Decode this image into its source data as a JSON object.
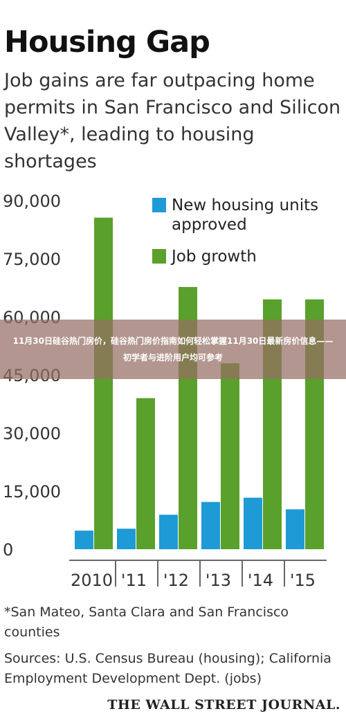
{
  "header": {
    "title": "Housing Gap",
    "subtitle": "Job gains are far outpacing home permits in San Francisco and Silicon Valley*, leading to housing shortages"
  },
  "overlay": {
    "banner_text": "11月30日硅谷热门房价，硅谷热门房价指南如何轻松掌握11月30日最新房价信息——初学者与进阶用户均可参考"
  },
  "chart_data": {
    "type": "bar",
    "categories": [
      "2010",
      "'11",
      "'12",
      "'13",
      "'14",
      "'15"
    ],
    "series": [
      {
        "name": "New housing units approved",
        "values": [
          4800,
          5300,
          8900,
          12200,
          13300,
          10300
        ],
        "color": "#1e9ad6"
      },
      {
        "name": "Job growth",
        "values": [
          85600,
          39000,
          67700,
          48000,
          64500,
          64500
        ],
        "color": "#5aa02c"
      }
    ],
    "ylim": [
      0,
      90000
    ],
    "yticks": [
      0,
      15000,
      30000,
      45000,
      60000,
      75000,
      90000
    ],
    "ytick_labels": [
      "0",
      "15,000",
      "30,000",
      "45,000",
      "60,000",
      "75,000",
      "90,000"
    ],
    "legend_position": "top-right",
    "legend": [
      {
        "lines": [
          "New housing units",
          "approved"
        ],
        "color": "#1e9ad6"
      },
      {
        "lines": [
          "Job growth"
        ],
        "color": "#5aa02c"
      }
    ],
    "grid": false
  },
  "footer": {
    "footnote": "*San Mateo, Santa Clara and San Francisco counties",
    "sources": "Sources: U.S. Census Bureau (housing); California Employment Development Dept. (jobs)",
    "publisher": "THE WALL STREET JOURNAL."
  }
}
